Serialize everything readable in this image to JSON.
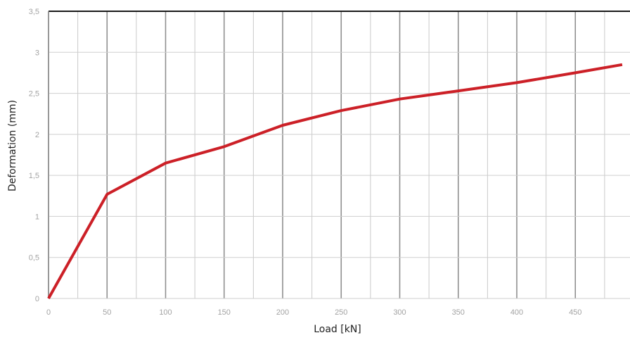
{
  "chart_data": {
    "type": "line",
    "title": "",
    "xlabel": "Load [kN]",
    "ylabel": "Deformation (mm)",
    "xlim": [
      0,
      490
    ],
    "ylim": [
      0,
      3.5
    ],
    "x_ticks": [
      "0",
      "50",
      "100",
      "150",
      "200",
      "250",
      "300",
      "350",
      "400",
      "450"
    ],
    "y_ticks": [
      "0",
      "0,5",
      "1",
      "1,5",
      "2",
      "2,5",
      "3",
      "3,5"
    ],
    "grid": true,
    "legend": "none",
    "series": [
      {
        "color": "#cc2027",
        "x": [
          0,
          50,
          100,
          150,
          200,
          250,
          300,
          350,
          400,
          450,
          490
        ],
        "y": [
          0,
          1.27,
          1.65,
          1.85,
          2.11,
          2.29,
          2.43,
          2.53,
          2.63,
          2.75,
          2.85
        ]
      }
    ]
  }
}
